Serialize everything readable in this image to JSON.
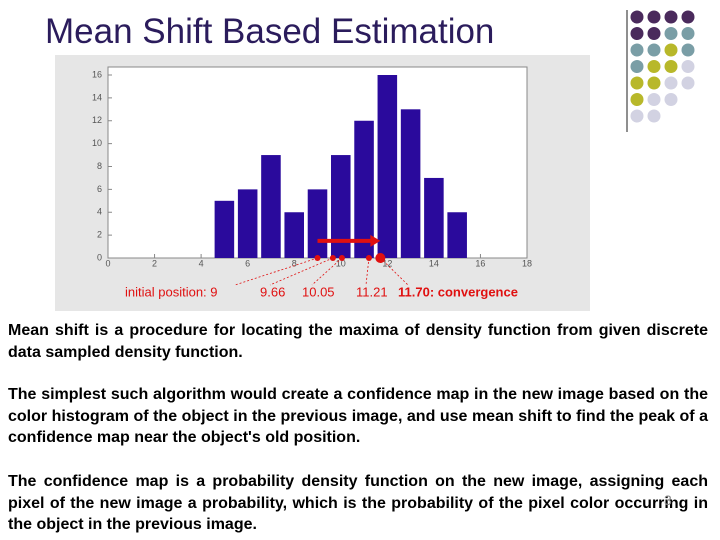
{
  "title": "Mean Shift Based Estimation",
  "chart_data": {
    "type": "bar",
    "x": [
      5,
      6,
      7,
      8,
      9,
      10,
      11,
      12,
      13,
      14,
      15
    ],
    "values": [
      5,
      6,
      9,
      4,
      6,
      9,
      12,
      16,
      13,
      7,
      4
    ],
    "color": "#2a0a9c",
    "xlim": [
      0,
      18
    ],
    "xticks": [
      0,
      2,
      4,
      6,
      8,
      10,
      12,
      14,
      16,
      18
    ],
    "ylim": [
      0,
      16
    ],
    "yticks": [
      0,
      2,
      4,
      6,
      8,
      10,
      12,
      14,
      16
    ],
    "annotations": [
      {
        "value": 9,
        "label": "initial position: 9"
      },
      {
        "value": 9.66,
        "label": "9.66"
      },
      {
        "value": 10.05,
        "label": "10.05"
      },
      {
        "value": 11.21,
        "label": "11.21"
      },
      {
        "value": 11.7,
        "label": "11.70: convergence"
      }
    ]
  },
  "paragraphs": [
    "Mean shift is a procedure for locating the maxima of  density function from given discrete data sampled density function.",
    "The simplest such algorithm would create a confidence map in the new image based on the color histogram of the object in the previous image, and use mean shift to find the peak of a confidence map near the object's old position.",
    "The confidence map is a probability density function on the new image, assigning each pixel of the new image a probability, which is the probability of the pixel color occurring in the object in the previous image."
  ],
  "slide_number": "3"
}
